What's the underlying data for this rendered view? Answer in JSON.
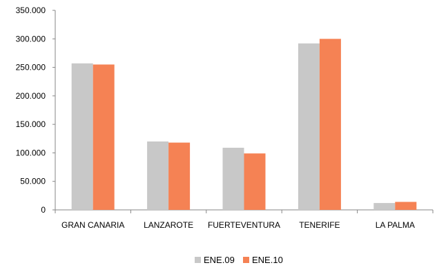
{
  "chart_data": {
    "type": "bar",
    "categories": [
      "GRAN CANARIA",
      "LANZAROTE",
      "FUERTEVENTURA",
      "TENERIFE",
      "LA PALMA"
    ],
    "series": [
      {
        "name": "ENE.09",
        "color": "#c8c8c8",
        "values": [
          257000,
          120000,
          109000,
          292000,
          12000
        ]
      },
      {
        "name": "ENE.10",
        "color": "#f58254",
        "values": [
          255000,
          118000,
          99000,
          300000,
          14000
        ]
      }
    ],
    "yticks": [
      "0",
      "50.000",
      "100.000",
      "150.000",
      "200.000",
      "250.000",
      "300.000",
      "350.000"
    ],
    "ylim": [
      0,
      350000
    ],
    "grid": false,
    "legend_position": "bottom"
  }
}
